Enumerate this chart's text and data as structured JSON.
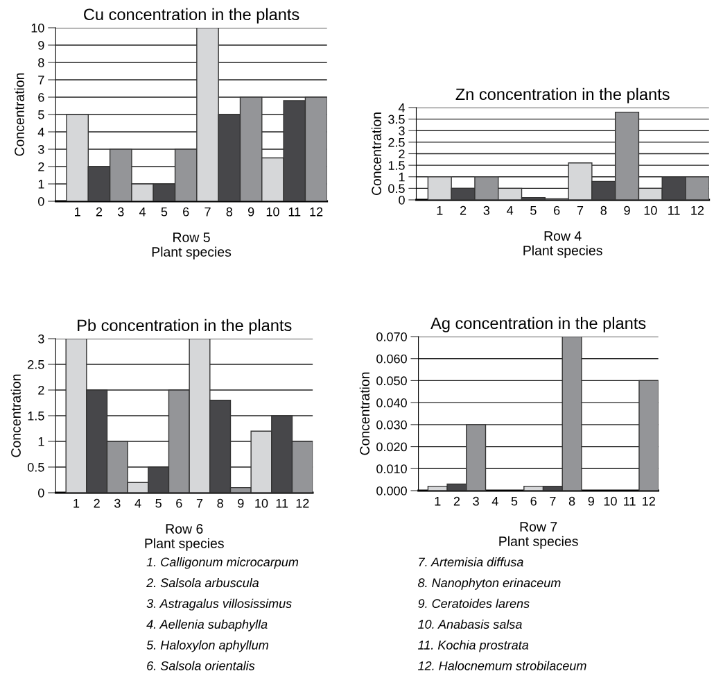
{
  "chart_data": [
    {
      "type": "bar",
      "title": "Cu concentration in the plants",
      "xlabel": "Row 5\nPlant species",
      "ylabel": "Concentration",
      "categories": [
        "1",
        "2",
        "3",
        "4",
        "5",
        "6",
        "7",
        "8",
        "9",
        "10",
        "11",
        "12"
      ],
      "values": [
        5,
        2,
        3,
        1,
        1,
        3,
        10,
        5,
        6,
        2.5,
        5.8,
        6
      ],
      "colors": [
        "#d6d7d9",
        "#47474a",
        "#949598",
        "#d6d7d9",
        "#47474a",
        "#949598",
        "#d6d7d9",
        "#47474a",
        "#949598",
        "#d6d7d9",
        "#47474a",
        "#949598"
      ],
      "ylim": [
        0,
        10
      ],
      "yticks": [
        0,
        1,
        2,
        3,
        4,
        5,
        6,
        7,
        8,
        9,
        10
      ],
      "grid": "y"
    },
    {
      "type": "bar",
      "title": "Zn concentration in the plants",
      "xlabel": "Row 4\nPlant species",
      "ylabel": "Concentration",
      "categories": [
        "1",
        "2",
        "3",
        "4",
        "5",
        "6",
        "7",
        "8",
        "9",
        "10",
        "11",
        "12"
      ],
      "values": [
        1,
        0.5,
        1,
        0.5,
        0.1,
        0.05,
        1.6,
        0.8,
        3.8,
        0.5,
        1,
        1
      ],
      "colors": [
        "#d6d7d9",
        "#47474a",
        "#949598",
        "#d6d7d9",
        "#47474a",
        "#949598",
        "#d6d7d9",
        "#47474a",
        "#949598",
        "#d6d7d9",
        "#47474a",
        "#949598"
      ],
      "ylim": [
        0,
        4
      ],
      "yticks": [
        0,
        0.5,
        1,
        1.5,
        2,
        2.5,
        3,
        3.5,
        4
      ],
      "grid": "y"
    },
    {
      "type": "bar",
      "title": "Pb concentration in the plants",
      "xlabel": "Row 6\nPlant species",
      "ylabel": "Concentration",
      "categories": [
        "1",
        "2",
        "3",
        "4",
        "5",
        "6",
        "7",
        "8",
        "9",
        "10",
        "11",
        "12"
      ],
      "values": [
        3,
        2,
        1,
        0.2,
        0.5,
        2,
        3,
        1.8,
        0.1,
        1.2,
        1.5,
        1
      ],
      "colors": [
        "#d6d7d9",
        "#47474a",
        "#949598",
        "#d6d7d9",
        "#47474a",
        "#949598",
        "#d6d7d9",
        "#47474a",
        "#949598",
        "#d6d7d9",
        "#47474a",
        "#949598"
      ],
      "ylim": [
        0,
        3
      ],
      "yticks": [
        0,
        0.5,
        1,
        1.5,
        2,
        2.5,
        3
      ],
      "grid": "y"
    },
    {
      "type": "bar",
      "title": "Ag concentration in the plants",
      "xlabel": "Row 7\nPlant species",
      "ylabel": "Concentration",
      "categories": [
        "1",
        "2",
        "3",
        "4",
        "5",
        "6",
        "7",
        "8",
        "9",
        "10",
        "11",
        "12"
      ],
      "values": [
        0.002,
        0.003,
        0.03,
        0,
        0,
        0.002,
        0.002,
        0.07,
        0,
        0,
        0,
        0.05
      ],
      "colors": [
        "#d6d7d9",
        "#47474a",
        "#949598",
        "#d6d7d9",
        "#47474a",
        "#d6d7d9",
        "#47474a",
        "#949598",
        "#d6d7d9",
        "#47474a",
        "#d6d7d9",
        "#949598"
      ],
      "ylim": [
        0,
        0.07
      ],
      "yticks": [
        {
          "value": 0,
          "label": "0.000"
        },
        {
          "value": 0.01,
          "label": "0.010"
        },
        {
          "value": 0.02,
          "label": "0.020"
        },
        {
          "value": 0.03,
          "label": "0.030"
        },
        {
          "value": 0.04,
          "label": "0.040"
        },
        {
          "value": 0.05,
          "label": "0.050"
        },
        {
          "value": 0.06,
          "label": "0.060"
        },
        {
          "value": 0.07,
          "label": "0.070"
        }
      ],
      "grid": "y"
    },
    {
      "type": "other",
      "annotations": [
        "1. Calligonum microcarpum",
        "2. Salsola arbuscula",
        "3. Astragalus villosissimus",
        "4. Aellenia subaphylla",
        "5. Haloxylon aphyllum",
        "6. Salsola orientalis",
        "7. Artemisia diffusa",
        "8. Nanophyton erinaceum",
        "9. Ceratoides larens",
        "10. Anabasis salsa",
        "11. Kochia prostrata",
        "12. Halocnemum strobilaceum"
      ]
    }
  ]
}
